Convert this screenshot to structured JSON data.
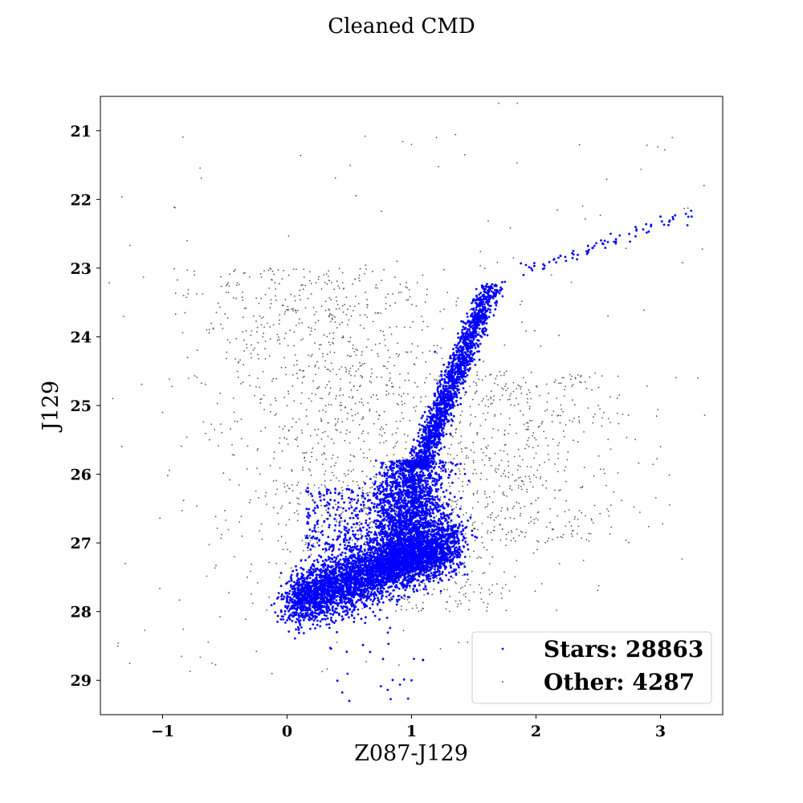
{
  "chart_data": {
    "type": "scatter",
    "title": "Cleaned CMD",
    "xlabel": "Z087-J129",
    "ylabel": "J129",
    "xlim": [
      -1.5,
      3.5
    ],
    "ylim": [
      29.5,
      20.5
    ],
    "y_inverted": true,
    "x_ticks": [
      -1,
      0,
      1,
      2,
      3
    ],
    "x_tick_labels": [
      "−1",
      "0",
      "1",
      "2",
      "3"
    ],
    "y_ticks": [
      21,
      22,
      23,
      24,
      25,
      26,
      27,
      28,
      29
    ],
    "y_tick_labels": [
      "21",
      "22",
      "23",
      "24",
      "25",
      "26",
      "27",
      "28",
      "29"
    ],
    "grid": false,
    "legend": {
      "placement": "lower-right",
      "entries": [
        "Stars: 28863",
        "Other: 4287"
      ]
    },
    "series": [
      {
        "name": "Stars: 28863",
        "color": "#0000ff",
        "count": 28863,
        "sample_points": [
          [
            0.0,
            27.85
          ],
          [
            0.2,
            27.7
          ],
          [
            0.4,
            27.7
          ],
          [
            0.6,
            27.6
          ],
          [
            0.8,
            27.4
          ],
          [
            1.0,
            27.2
          ],
          [
            1.2,
            27.0
          ],
          [
            0.9,
            26.5
          ],
          [
            1.0,
            26.0
          ],
          [
            1.1,
            25.5
          ],
          [
            1.2,
            25.0
          ],
          [
            1.3,
            24.5
          ],
          [
            1.4,
            24.0
          ],
          [
            1.55,
            23.6
          ],
          [
            1.75,
            23.2
          ],
          [
            1.9,
            23.1
          ],
          [
            2.3,
            22.75
          ],
          [
            2.6,
            22.5
          ],
          [
            2.8,
            22.4
          ],
          [
            3.0,
            22.25
          ],
          [
            3.25,
            22.25
          ],
          [
            0.4,
            28.3
          ],
          [
            0.5,
            29.3
          ],
          [
            1.0,
            29.0
          ]
        ]
      },
      {
        "name": "Other: 4287",
        "color": "#555555",
        "count": 4287,
        "sample_points": [
          [
            -1.4,
            24.9
          ],
          [
            -1.3,
            27.3
          ],
          [
            -1.0,
            25.1
          ],
          [
            -0.8,
            24.3
          ],
          [
            0.0,
            25.0
          ],
          [
            0.5,
            24.5
          ],
          [
            0.6,
            25.2
          ],
          [
            0.3,
            26.0
          ],
          [
            1.0,
            21.2
          ],
          [
            1.2,
            21.1
          ],
          [
            1.7,
            20.6
          ],
          [
            1.85,
            20.6
          ],
          [
            2.0,
            25.5
          ],
          [
            2.5,
            25.0
          ],
          [
            3.0,
            25.6
          ],
          [
            3.3,
            24.6
          ],
          [
            3.35,
            21.8
          ]
        ]
      }
    ]
  }
}
